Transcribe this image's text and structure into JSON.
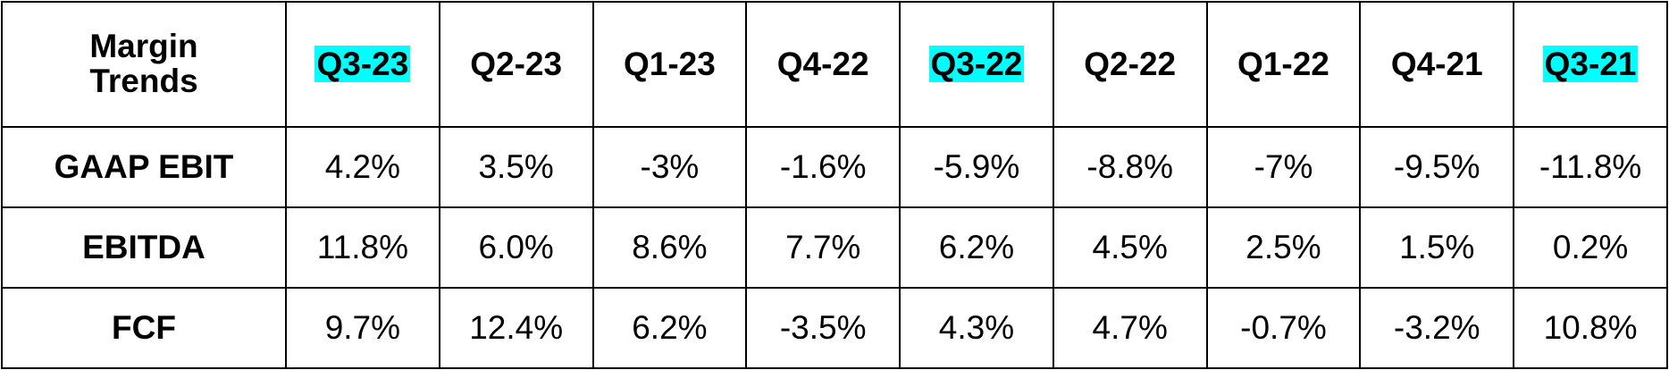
{
  "table": {
    "header": [
      "Margin Trends",
      "Q3-23",
      "Q2-23",
      "Q1-23",
      "Q4-22",
      "Q3-22",
      "Q2-22",
      "Q1-22",
      "Q4-21",
      "Q3-21"
    ],
    "rows": [
      [
        "GAAP EBIT",
        "4.2%",
        "3.5%",
        "-3%",
        "-1.6%",
        "-5.9%",
        "-8.8%",
        "-7%",
        "-9.5%",
        "-11.8%"
      ],
      [
        "EBITDA",
        "11.8%",
        "6.0%",
        "8.6%",
        "7.7%",
        "6.2%",
        "4.5%",
        "2.5%",
        "1.5%",
        "0.2%"
      ],
      [
        "FCF",
        "9.7%",
        "12.4%",
        "6.2%",
        "-3.5%",
        "4.3%",
        "4.7%",
        "-0.7%",
        "-3.2%",
        "10.8%"
      ]
    ]
  }
}
